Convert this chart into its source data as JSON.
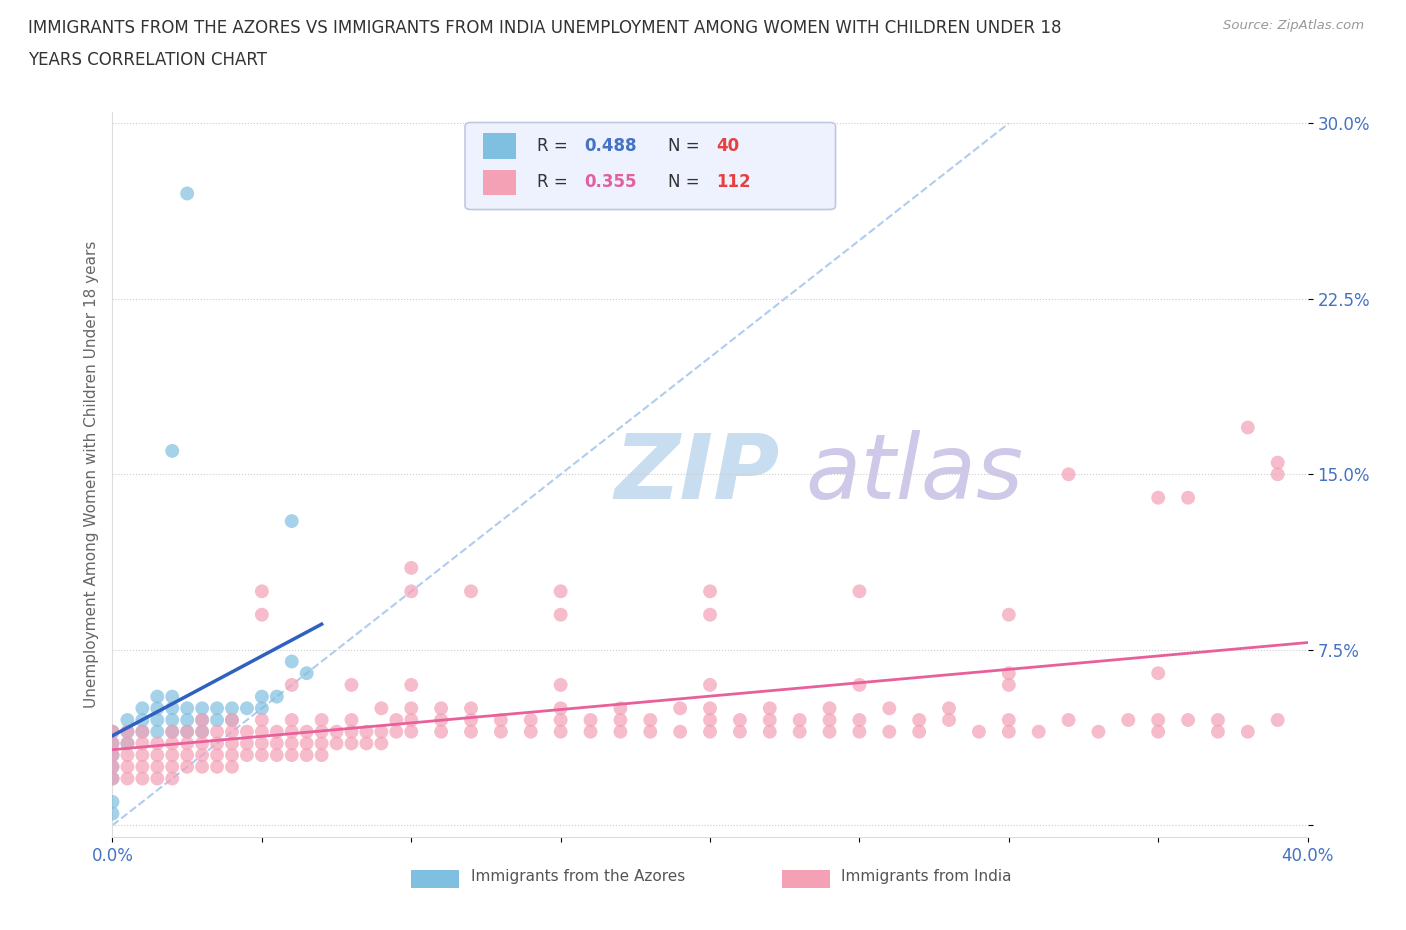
{
  "title_line1": "IMMIGRANTS FROM THE AZORES VS IMMIGRANTS FROM INDIA UNEMPLOYMENT AMONG WOMEN WITH CHILDREN UNDER 18",
  "title_line2": "YEARS CORRELATION CHART",
  "source": "Source: ZipAtlas.com",
  "ylabel": "Unemployment Among Women with Children Under 18 years",
  "xlim": [
    0.0,
    0.4
  ],
  "ylim": [
    -0.005,
    0.305
  ],
  "xticks": [
    0.0,
    0.05,
    0.1,
    0.15,
    0.2,
    0.25,
    0.3,
    0.35,
    0.4
  ],
  "xticklabels": [
    "0.0%",
    "",
    "",
    "",
    "",
    "",
    "",
    "",
    "40.0%"
  ],
  "yticks": [
    0.0,
    0.075,
    0.15,
    0.225,
    0.3
  ],
  "yticklabels": [
    "",
    "7.5%",
    "15.0%",
    "22.5%",
    "30.0%"
  ],
  "azores_color": "#7fbfdf",
  "india_color": "#f4a0b5",
  "azores_line_color": "#3060c0",
  "india_line_color": "#e8609a",
  "diagonal_color": "#b0ccee",
  "watermark_zip_color": "#c8ddf0",
  "watermark_atlas_color": "#d0c8e8",
  "azores_points": [
    [
      0.0,
      0.04
    ],
    [
      0.0,
      0.035
    ],
    [
      0.0,
      0.03
    ],
    [
      0.0,
      0.025
    ],
    [
      0.0,
      0.02
    ],
    [
      0.005,
      0.035
    ],
    [
      0.005,
      0.04
    ],
    [
      0.005,
      0.045
    ],
    [
      0.01,
      0.04
    ],
    [
      0.01,
      0.05
    ],
    [
      0.01,
      0.045
    ],
    [
      0.015,
      0.04
    ],
    [
      0.015,
      0.045
    ],
    [
      0.015,
      0.05
    ],
    [
      0.015,
      0.055
    ],
    [
      0.02,
      0.04
    ],
    [
      0.02,
      0.045
    ],
    [
      0.02,
      0.05
    ],
    [
      0.02,
      0.055
    ],
    [
      0.025,
      0.04
    ],
    [
      0.025,
      0.045
    ],
    [
      0.025,
      0.05
    ],
    [
      0.03,
      0.04
    ],
    [
      0.03,
      0.045
    ],
    [
      0.03,
      0.05
    ],
    [
      0.035,
      0.05
    ],
    [
      0.035,
      0.045
    ],
    [
      0.04,
      0.045
    ],
    [
      0.04,
      0.05
    ],
    [
      0.045,
      0.05
    ],
    [
      0.05,
      0.05
    ],
    [
      0.05,
      0.055
    ],
    [
      0.055,
      0.055
    ],
    [
      0.06,
      0.07
    ],
    [
      0.065,
      0.065
    ],
    [
      0.0,
      0.005
    ],
    [
      0.0,
      0.01
    ],
    [
      0.02,
      0.16
    ],
    [
      0.025,
      0.27
    ],
    [
      0.06,
      0.13
    ]
  ],
  "india_points": [
    [
      0.0,
      0.02
    ],
    [
      0.0,
      0.025
    ],
    [
      0.0,
      0.03
    ],
    [
      0.0,
      0.035
    ],
    [
      0.0,
      0.04
    ],
    [
      0.005,
      0.02
    ],
    [
      0.005,
      0.025
    ],
    [
      0.005,
      0.03
    ],
    [
      0.005,
      0.035
    ],
    [
      0.005,
      0.04
    ],
    [
      0.01,
      0.02
    ],
    [
      0.01,
      0.025
    ],
    [
      0.01,
      0.03
    ],
    [
      0.01,
      0.035
    ],
    [
      0.01,
      0.04
    ],
    [
      0.015,
      0.02
    ],
    [
      0.015,
      0.025
    ],
    [
      0.015,
      0.03
    ],
    [
      0.015,
      0.035
    ],
    [
      0.02,
      0.02
    ],
    [
      0.02,
      0.025
    ],
    [
      0.02,
      0.03
    ],
    [
      0.02,
      0.035
    ],
    [
      0.02,
      0.04
    ],
    [
      0.025,
      0.025
    ],
    [
      0.025,
      0.03
    ],
    [
      0.025,
      0.035
    ],
    [
      0.025,
      0.04
    ],
    [
      0.03,
      0.025
    ],
    [
      0.03,
      0.03
    ],
    [
      0.03,
      0.035
    ],
    [
      0.03,
      0.04
    ],
    [
      0.03,
      0.045
    ],
    [
      0.035,
      0.025
    ],
    [
      0.035,
      0.03
    ],
    [
      0.035,
      0.035
    ],
    [
      0.035,
      0.04
    ],
    [
      0.04,
      0.025
    ],
    [
      0.04,
      0.03
    ],
    [
      0.04,
      0.035
    ],
    [
      0.04,
      0.04
    ],
    [
      0.04,
      0.045
    ],
    [
      0.045,
      0.03
    ],
    [
      0.045,
      0.035
    ],
    [
      0.045,
      0.04
    ],
    [
      0.05,
      0.03
    ],
    [
      0.05,
      0.035
    ],
    [
      0.05,
      0.04
    ],
    [
      0.05,
      0.045
    ],
    [
      0.055,
      0.03
    ],
    [
      0.055,
      0.035
    ],
    [
      0.055,
      0.04
    ],
    [
      0.06,
      0.03
    ],
    [
      0.06,
      0.035
    ],
    [
      0.06,
      0.04
    ],
    [
      0.06,
      0.045
    ],
    [
      0.065,
      0.03
    ],
    [
      0.065,
      0.035
    ],
    [
      0.065,
      0.04
    ],
    [
      0.07,
      0.03
    ],
    [
      0.07,
      0.035
    ],
    [
      0.07,
      0.04
    ],
    [
      0.07,
      0.045
    ],
    [
      0.075,
      0.035
    ],
    [
      0.075,
      0.04
    ],
    [
      0.08,
      0.035
    ],
    [
      0.08,
      0.04
    ],
    [
      0.08,
      0.045
    ],
    [
      0.085,
      0.035
    ],
    [
      0.085,
      0.04
    ],
    [
      0.09,
      0.035
    ],
    [
      0.09,
      0.04
    ],
    [
      0.09,
      0.05
    ],
    [
      0.095,
      0.04
    ],
    [
      0.095,
      0.045
    ],
    [
      0.1,
      0.04
    ],
    [
      0.1,
      0.045
    ],
    [
      0.1,
      0.05
    ],
    [
      0.11,
      0.04
    ],
    [
      0.11,
      0.045
    ],
    [
      0.11,
      0.05
    ],
    [
      0.12,
      0.04
    ],
    [
      0.12,
      0.045
    ],
    [
      0.12,
      0.05
    ],
    [
      0.13,
      0.04
    ],
    [
      0.13,
      0.045
    ],
    [
      0.14,
      0.04
    ],
    [
      0.14,
      0.045
    ],
    [
      0.15,
      0.04
    ],
    [
      0.15,
      0.045
    ],
    [
      0.15,
      0.05
    ],
    [
      0.16,
      0.04
    ],
    [
      0.16,
      0.045
    ],
    [
      0.17,
      0.04
    ],
    [
      0.17,
      0.045
    ],
    [
      0.17,
      0.05
    ],
    [
      0.18,
      0.04
    ],
    [
      0.18,
      0.045
    ],
    [
      0.19,
      0.04
    ],
    [
      0.19,
      0.05
    ],
    [
      0.2,
      0.04
    ],
    [
      0.2,
      0.045
    ],
    [
      0.2,
      0.05
    ],
    [
      0.21,
      0.04
    ],
    [
      0.21,
      0.045
    ],
    [
      0.22,
      0.04
    ],
    [
      0.22,
      0.045
    ],
    [
      0.22,
      0.05
    ],
    [
      0.23,
      0.04
    ],
    [
      0.23,
      0.045
    ],
    [
      0.24,
      0.04
    ],
    [
      0.24,
      0.045
    ],
    [
      0.24,
      0.05
    ],
    [
      0.25,
      0.04
    ],
    [
      0.25,
      0.045
    ],
    [
      0.26,
      0.04
    ],
    [
      0.26,
      0.05
    ],
    [
      0.27,
      0.04
    ],
    [
      0.27,
      0.045
    ],
    [
      0.28,
      0.045
    ],
    [
      0.28,
      0.05
    ],
    [
      0.29,
      0.04
    ],
    [
      0.3,
      0.04
    ],
    [
      0.3,
      0.045
    ],
    [
      0.31,
      0.04
    ],
    [
      0.32,
      0.045
    ],
    [
      0.33,
      0.04
    ],
    [
      0.34,
      0.045
    ],
    [
      0.35,
      0.04
    ],
    [
      0.35,
      0.045
    ],
    [
      0.36,
      0.045
    ],
    [
      0.37,
      0.04
    ],
    [
      0.37,
      0.045
    ],
    [
      0.38,
      0.04
    ],
    [
      0.39,
      0.045
    ],
    [
      0.05,
      0.09
    ],
    [
      0.05,
      0.1
    ],
    [
      0.1,
      0.1
    ],
    [
      0.1,
      0.11
    ],
    [
      0.12,
      0.1
    ],
    [
      0.15,
      0.09
    ],
    [
      0.15,
      0.1
    ],
    [
      0.2,
      0.09
    ],
    [
      0.2,
      0.1
    ],
    [
      0.25,
      0.1
    ],
    [
      0.3,
      0.09
    ],
    [
      0.35,
      0.14
    ],
    [
      0.36,
      0.14
    ],
    [
      0.38,
      0.17
    ],
    [
      0.39,
      0.15
    ],
    [
      0.39,
      0.155
    ],
    [
      0.32,
      0.15
    ],
    [
      0.3,
      0.06
    ],
    [
      0.3,
      0.065
    ],
    [
      0.25,
      0.06
    ],
    [
      0.2,
      0.06
    ],
    [
      0.15,
      0.06
    ],
    [
      0.35,
      0.065
    ],
    [
      0.1,
      0.06
    ],
    [
      0.08,
      0.06
    ],
    [
      0.06,
      0.06
    ]
  ]
}
